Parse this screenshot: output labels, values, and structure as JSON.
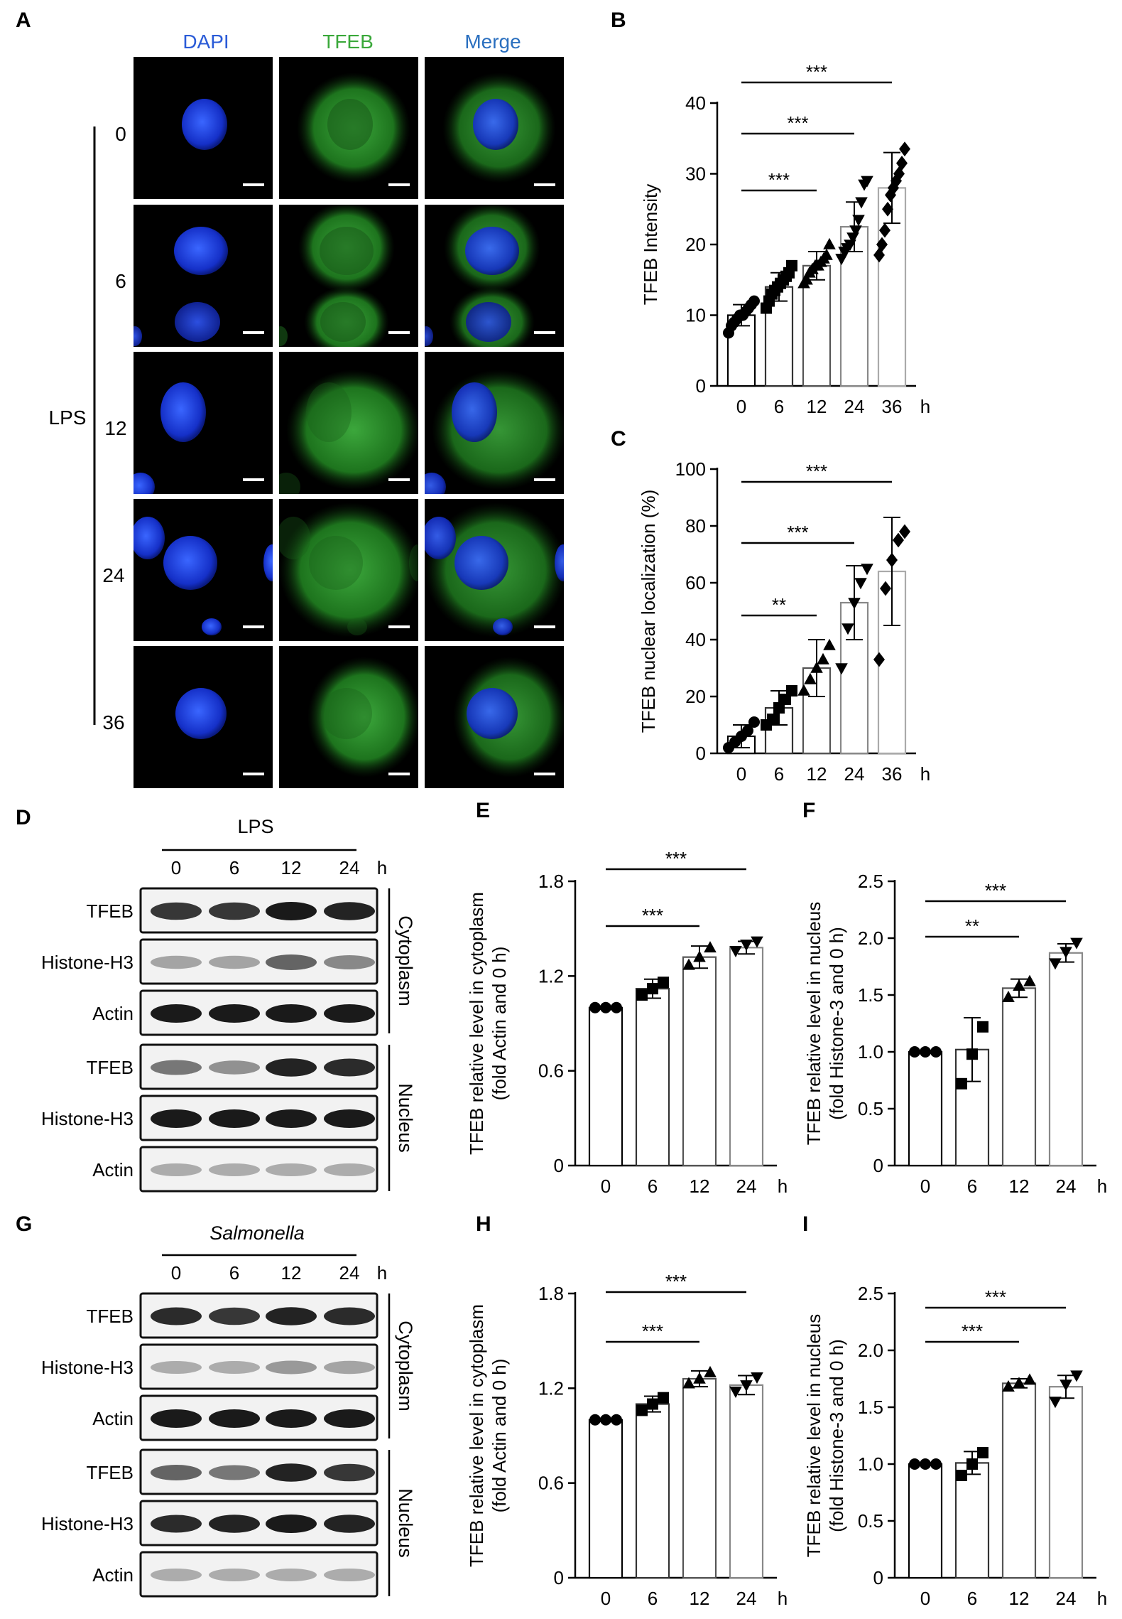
{
  "panels": {
    "A": {
      "label": "A",
      "columns": [
        "DAPI",
        "TFEB",
        "Merge"
      ],
      "column_colors": [
        "#2a5bd7",
        "#3aa83a",
        "#2a6fbf"
      ],
      "treatment": "LPS",
      "timepoints": [
        "0",
        "6",
        "12",
        "24",
        "36"
      ]
    },
    "D": {
      "label": "D",
      "treatment": "LPS",
      "time_header": [
        "0",
        "6",
        "12",
        "24"
      ],
      "time_unit": "h",
      "rows": [
        "TFEB",
        "Histone-H3",
        "Actin",
        "TFEB",
        "Histone-H3",
        "Actin"
      ],
      "fractions": [
        "Cytoplasm",
        "Nucleus"
      ]
    },
    "G": {
      "label": "G",
      "treatment": "Salmonella",
      "time_header": [
        "0",
        "6",
        "12",
        "24"
      ],
      "time_unit": "h",
      "rows": [
        "TFEB",
        "Histone-H3",
        "Actin",
        "TFEB",
        "Histone-H3",
        "Actin"
      ],
      "fractions": [
        "Cytoplasm",
        "Nucleus"
      ]
    }
  },
  "chart_data": [
    {
      "id": "B",
      "label": "B",
      "type": "bar",
      "categories": [
        "0",
        "6",
        "12",
        "24",
        "36"
      ],
      "x_unit": "h",
      "ylabel": "TFEB  Intensity",
      "ylim": [
        0,
        40
      ],
      "yticks": [
        0,
        10,
        20,
        30,
        40
      ],
      "values": [
        10,
        14,
        17,
        22.5,
        28
      ],
      "errors": [
        1.5,
        2,
        2,
        3.5,
        5
      ],
      "points": [
        [
          7.5,
          8.5,
          9,
          9.5,
          10,
          10,
          10.5,
          11,
          11.5,
          12
        ],
        [
          11,
          12,
          13,
          13.5,
          14,
          14.5,
          15,
          15.5,
          16,
          17
        ],
        [
          14.5,
          15,
          16,
          16.5,
          17,
          17,
          17.5,
          18,
          18.5,
          20
        ],
        [
          18,
          19,
          19.5,
          20,
          21,
          22,
          23.5,
          26,
          28.5,
          29
        ],
        [
          18.5,
          20,
          22,
          25,
          27,
          28,
          29,
          30,
          31.5,
          33.5
        ]
      ],
      "markers": [
        "circle",
        "square",
        "triangle",
        "triangle-down",
        "diamond"
      ],
      "brackets": [
        {
          "from": 0,
          "to": 2,
          "text": "***"
        },
        {
          "from": 0,
          "to": 3,
          "text": "***"
        },
        {
          "from": 0,
          "to": 4,
          "text": "***"
        }
      ]
    },
    {
      "id": "C",
      "label": "C",
      "type": "bar",
      "categories": [
        "0",
        "6",
        "12",
        "24",
        "36"
      ],
      "x_unit": "h",
      "ylabel": "TFEB  nuclear localization (%)",
      "ylim": [
        0,
        100
      ],
      "yticks": [
        0,
        20,
        40,
        60,
        80,
        100
      ],
      "values": [
        6,
        16,
        30,
        53,
        64
      ],
      "errors": [
        4,
        6,
        10,
        13,
        19
      ],
      "points": [
        [
          2,
          4,
          6,
          8,
          11
        ],
        [
          10,
          12,
          16,
          19,
          22
        ],
        [
          22,
          26,
          30,
          33,
          38
        ],
        [
          30,
          44,
          53,
          60,
          65
        ],
        [
          33,
          58,
          68,
          75,
          78
        ]
      ],
      "markers": [
        "circle",
        "square",
        "triangle",
        "triangle-down",
        "diamond"
      ],
      "brackets": [
        {
          "from": 0,
          "to": 2,
          "text": "**"
        },
        {
          "from": 0,
          "to": 3,
          "text": "***"
        },
        {
          "from": 0,
          "to": 4,
          "text": "***"
        }
      ]
    },
    {
      "id": "E",
      "label": "E",
      "type": "bar",
      "categories": [
        "0",
        "6",
        "12",
        "24"
      ],
      "x_unit": "h",
      "ylabel": [
        "TFEB relative level in cytoplasm",
        "(fold Actin and 0 h)"
      ],
      "ylim": [
        0,
        1.8
      ],
      "yticks": [
        "0",
        "0.6",
        "1.2",
        "1.8"
      ],
      "values": [
        1.0,
        1.12,
        1.32,
        1.38
      ],
      "errors": [
        0.01,
        0.06,
        0.07,
        0.04
      ],
      "points": [
        [
          1.0,
          1.0,
          1.0
        ],
        [
          1.08,
          1.12,
          1.16
        ],
        [
          1.27,
          1.32,
          1.38
        ],
        [
          1.36,
          1.4,
          1.42
        ]
      ],
      "markers": [
        "circle",
        "square",
        "triangle",
        "triangle-down"
      ],
      "brackets": [
        {
          "from": 0,
          "to": 2,
          "text": "***"
        },
        {
          "from": 0,
          "to": 3,
          "text": "***"
        }
      ]
    },
    {
      "id": "F",
      "label": "F",
      "type": "bar",
      "categories": [
        "0",
        "6",
        "12",
        "24"
      ],
      "x_unit": "h",
      "ylabel": [
        "TFEB relative level in nucleus",
        "(fold Histone-3 and 0 h)"
      ],
      "ylim": [
        0,
        2.5
      ],
      "yticks": [
        "0",
        "0.5",
        "1.0",
        "1.5",
        "2.0",
        "2.5"
      ],
      "values": [
        1.0,
        1.02,
        1.56,
        1.87
      ],
      "errors": [
        0.01,
        0.28,
        0.08,
        0.08
      ],
      "points": [
        [
          1.0,
          1.0,
          1.0
        ],
        [
          0.72,
          0.98,
          1.22
        ],
        [
          1.48,
          1.58,
          1.62
        ],
        [
          1.78,
          1.88,
          1.96
        ]
      ],
      "markers": [
        "circle",
        "square",
        "triangle",
        "triangle-down"
      ],
      "brackets": [
        {
          "from": 0,
          "to": 2,
          "text": "**"
        },
        {
          "from": 0,
          "to": 3,
          "text": "***"
        }
      ]
    },
    {
      "id": "H",
      "label": "H",
      "type": "bar",
      "categories": [
        "0",
        "6",
        "12",
        "24"
      ],
      "x_unit": "h",
      "ylabel": [
        "TFEB relative level in cytoplasm",
        "(fold Actin and 0 h)"
      ],
      "ylim": [
        0,
        1.8
      ],
      "yticks": [
        "0",
        "0.6",
        "1.2",
        "1.8"
      ],
      "values": [
        1.0,
        1.1,
        1.26,
        1.22
      ],
      "errors": [
        0.01,
        0.05,
        0.05,
        0.06
      ],
      "points": [
        [
          1.0,
          1.0,
          1.0
        ],
        [
          1.06,
          1.1,
          1.14
        ],
        [
          1.23,
          1.26,
          1.3
        ],
        [
          1.18,
          1.22,
          1.27
        ]
      ],
      "markers": [
        "circle",
        "square",
        "triangle",
        "triangle-down"
      ],
      "brackets": [
        {
          "from": 0,
          "to": 2,
          "text": "***"
        },
        {
          "from": 0,
          "to": 3,
          "text": "***"
        }
      ]
    },
    {
      "id": "I",
      "label": "I",
      "type": "bar",
      "categories": [
        "0",
        "6",
        "12",
        "24"
      ],
      "x_unit": "h",
      "ylabel": [
        "TFEB relative level in nucleus",
        "(fold Histone-3 and 0 h)"
      ],
      "ylim": [
        0,
        2.5
      ],
      "yticks": [
        "0",
        "0.5",
        "1.0",
        "1.5",
        "2.0",
        "2.5"
      ],
      "values": [
        1.0,
        1.01,
        1.71,
        1.68
      ],
      "errors": [
        0.01,
        0.1,
        0.04,
        0.1
      ],
      "points": [
        [
          1.0,
          1.0,
          1.0
        ],
        [
          0.9,
          1.0,
          1.1
        ],
        [
          1.68,
          1.71,
          1.74
        ],
        [
          1.55,
          1.7,
          1.78
        ]
      ],
      "markers": [
        "circle",
        "square",
        "triangle",
        "triangle-down"
      ],
      "brackets": [
        {
          "from": 0,
          "to": 2,
          "text": "***"
        },
        {
          "from": 0,
          "to": 3,
          "text": "***"
        }
      ]
    }
  ]
}
